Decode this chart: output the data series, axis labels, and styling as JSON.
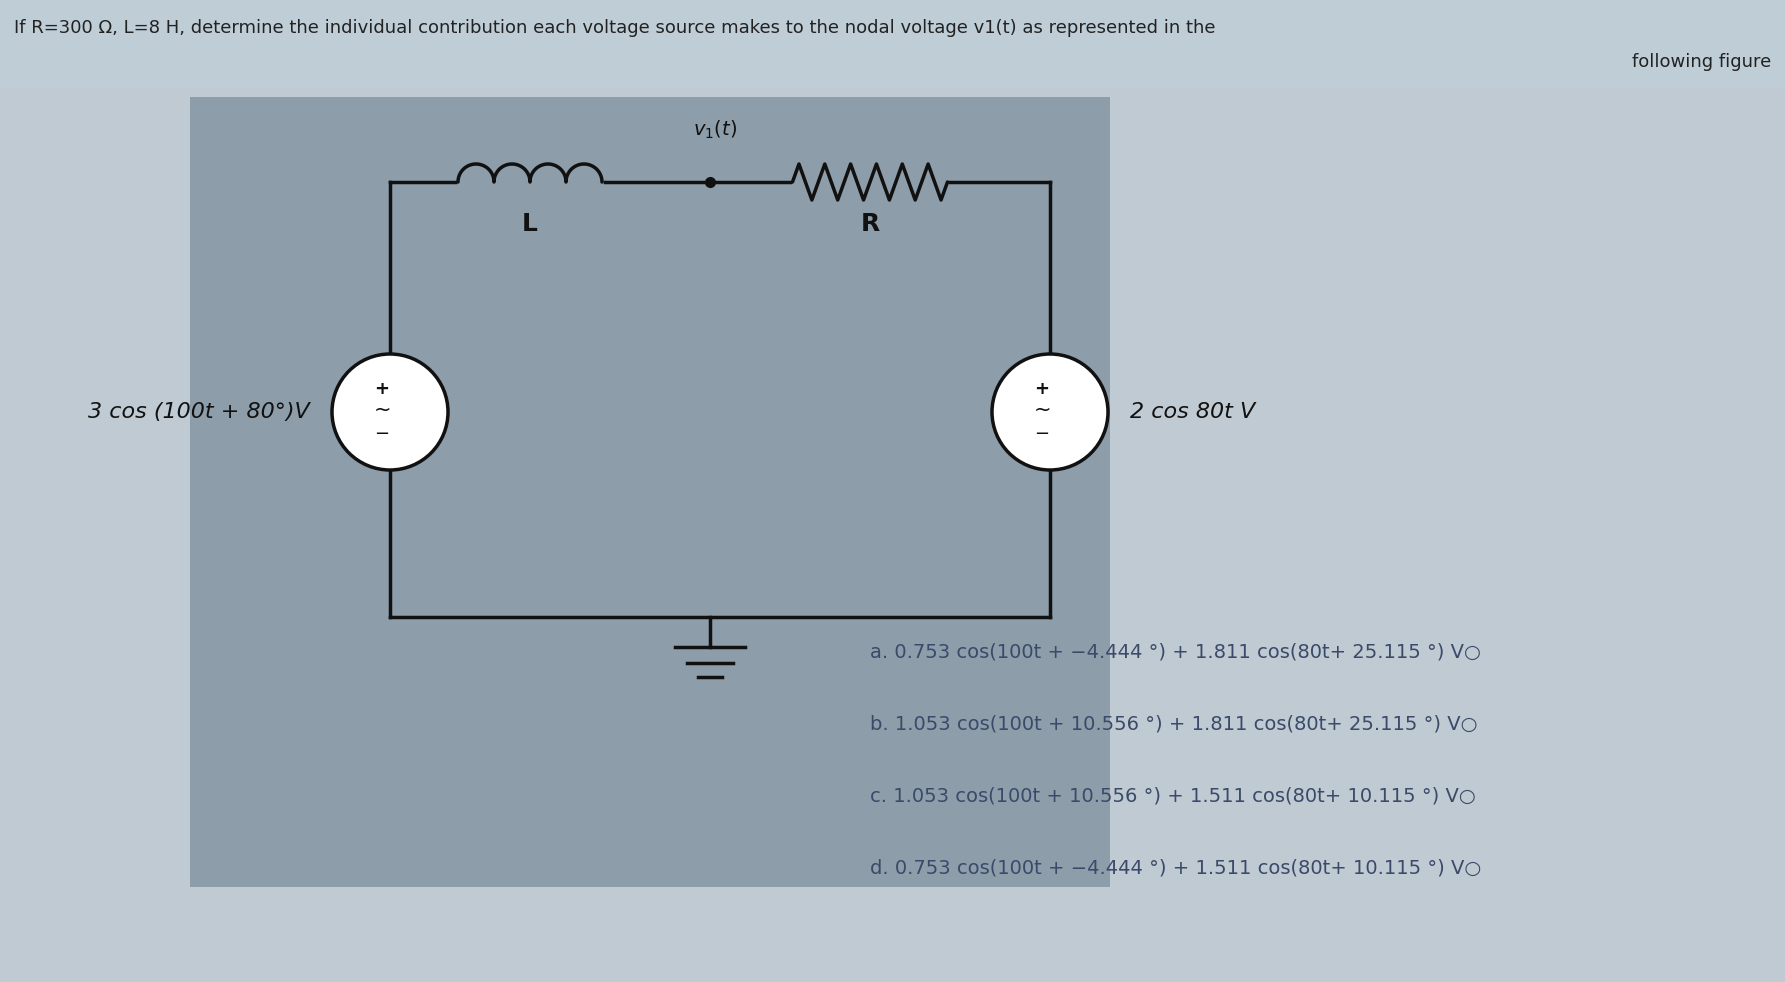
{
  "title_line1": "If R=300 Ω, L=8 H, determine the individual contribution each voltage source makes to the nodal voltage v1(t) as represented in the",
  "title_line2": "following figure",
  "bg_color_top": "#c5d3dc",
  "bg_color_circuit": "#8d9daa",
  "bg_color_main": "#c0cad2",
  "left_source_label": "3 cos (100t + 80°)V",
  "right_source_label": "2 cos 80t V",
  "node_label": "v₁(t)",
  "inductor_label": "L",
  "resistor_label": "R",
  "choices": [
    "a. 0.753 cos(100t + −4.444 °) + 1.811 cos(80t+ 25.115 °) V○",
    "b. 1.053 cos(100t + 10.556 °) + 1.811 cos(80t+ 25.115 °) V○",
    "c. 1.053 cos(100t + 10.556 °) + 1.511 cos(80t+ 10.115 °) V○",
    "d. 0.753 cos(100t + −4.444 °) + 1.511 cos(80t+ 10.115 °) V○"
  ],
  "title_color": "#222222",
  "circuit_color": "#111111",
  "choice_color": "#3a4a6a",
  "source_label_color": "#111111",
  "circuit_bg": "#8d9daa",
  "header_bg": "#bfcdd6"
}
